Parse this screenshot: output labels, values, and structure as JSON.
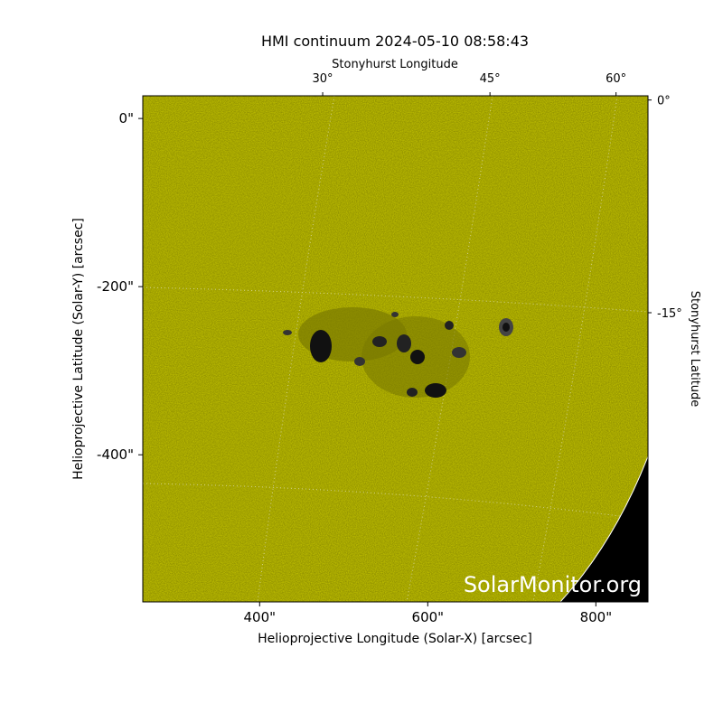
{
  "chart_data": {
    "type": "image",
    "title": "HMI continuum 2024-05-10 08:58:43",
    "x_label": "Helioprojective Longitude (Solar-X) [arcsec]",
    "y_label": "Helioprojective Latitude (Solar-Y) [arcsec]",
    "top_label": "Stonyhurst Longitude",
    "right_label": "Stonyhurst Latitude",
    "watermark": "SolarMonitor.org",
    "xlim": [
      261,
      862
    ],
    "ylim": [
      -575,
      27
    ],
    "xticks": [
      {
        "value": 400,
        "label": "400\""
      },
      {
        "value": 600,
        "label": "600\""
      },
      {
        "value": 800,
        "label": "800\""
      }
    ],
    "yticks": [
      {
        "value": 0,
        "label": "0\""
      },
      {
        "value": -200,
        "label": "-200\""
      },
      {
        "value": -400,
        "label": "-400\""
      }
    ],
    "top_ticks": [
      {
        "value": 30,
        "label": "30°",
        "at": 475
      },
      {
        "value": 45,
        "label": "45°",
        "at": 674
      },
      {
        "value": 60,
        "label": "60°",
        "at": 824
      }
    ],
    "right_ticks": [
      {
        "value": 0,
        "label": "0°",
        "at": 22
      },
      {
        "value": -15,
        "label": "-15°",
        "at": -231
      }
    ],
    "color": "#c9c900"
  }
}
